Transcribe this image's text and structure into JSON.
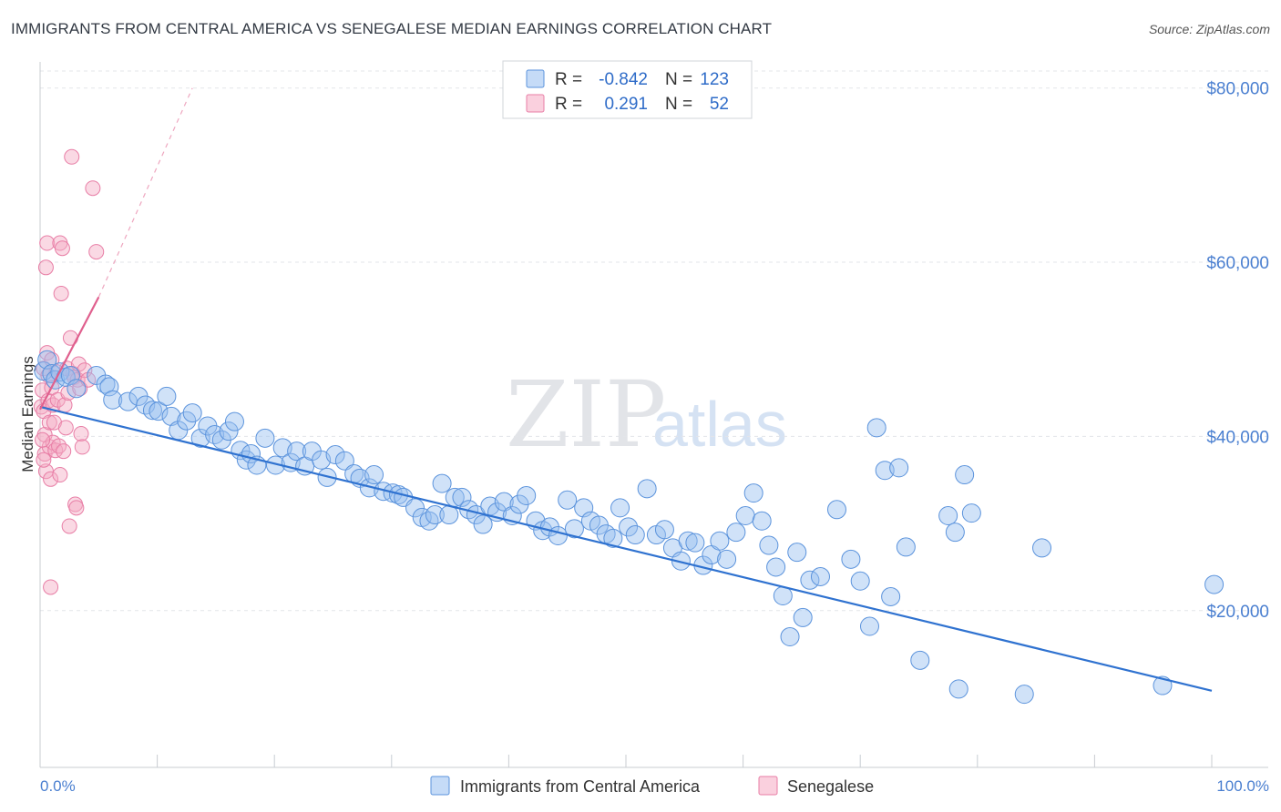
{
  "title": "IMMIGRANTS FROM CENTRAL AMERICA VS SENEGALESE MEDIAN EARNINGS CORRELATION CHART",
  "source": "Source: ZipAtlas.com",
  "watermark": {
    "zip": "ZIP",
    "atlas": "atlas"
  },
  "legend_top": {
    "r_label": "R =",
    "n_label": "N =",
    "rows": [
      {
        "r": "-0.842",
        "n": "123",
        "color": "#a8c8f0"
      },
      {
        "r": "0.291",
        "n": "52",
        "color": "#f5b8cc"
      }
    ]
  },
  "bottom_legend": [
    "Immigrants from Central America",
    "Senegalese"
  ],
  "colors": {
    "blue": "#5b93dc",
    "blue_fill": "rgba(150,190,240,0.45)",
    "pink": "#e87ea6",
    "pink_fill": "rgba(245,170,195,0.45)",
    "line_blue": "#2f72d0",
    "line_pink": "#e0608e"
  },
  "chart_data": {
    "type": "scatter",
    "title": "IMMIGRANTS FROM CENTRAL AMERICA VS SENEGALESE MEDIAN EARNINGS CORRELATION CHART",
    "xlabel": "",
    "ylabel": "Median Earnings",
    "xlim": [
      0,
      100
    ],
    "ylim": [
      2000,
      83000
    ],
    "x_tick_labels": [
      "0.0%",
      "100.0%"
    ],
    "y_ticks": [
      20000,
      40000,
      60000,
      80000
    ],
    "y_tick_labels": [
      "$20,000",
      "$40,000",
      "$60,000",
      "$80,000"
    ],
    "grid": true,
    "series": [
      {
        "name": "Immigrants from Central America",
        "r": -0.842,
        "n": 123,
        "trend": {
          "x": [
            0,
            100
          ],
          "y": [
            43400,
            10800
          ]
        },
        "points": [
          [
            0.3,
            47500
          ],
          [
            0.6,
            48800
          ],
          [
            1.0,
            47200
          ],
          [
            1.3,
            46500
          ],
          [
            1.7,
            47400
          ],
          [
            2.2,
            46800
          ],
          [
            2.6,
            47000
          ],
          [
            3.1,
            45500
          ],
          [
            4.8,
            47000
          ],
          [
            5.6,
            46000
          ],
          [
            5.9,
            45700
          ],
          [
            6.2,
            44200
          ],
          [
            7.5,
            44000
          ],
          [
            8.4,
            44600
          ],
          [
            9.0,
            43600
          ],
          [
            9.6,
            43000
          ],
          [
            10.1,
            42900
          ],
          [
            10.8,
            44600
          ],
          [
            11.2,
            42300
          ],
          [
            11.8,
            40700
          ],
          [
            12.5,
            41800
          ],
          [
            13.0,
            42700
          ],
          [
            13.7,
            39800
          ],
          [
            14.3,
            41200
          ],
          [
            14.9,
            40200
          ],
          [
            15.5,
            39600
          ],
          [
            16.1,
            40600
          ],
          [
            16.6,
            41700
          ],
          [
            17.1,
            38400
          ],
          [
            17.6,
            37300
          ],
          [
            18.0,
            38000
          ],
          [
            18.5,
            36700
          ],
          [
            19.2,
            39800
          ],
          [
            20.1,
            36700
          ],
          [
            20.7,
            38700
          ],
          [
            21.4,
            37000
          ],
          [
            21.9,
            38300
          ],
          [
            22.6,
            36600
          ],
          [
            23.2,
            38300
          ],
          [
            24.0,
            37300
          ],
          [
            24.5,
            35300
          ],
          [
            25.2,
            37900
          ],
          [
            26.0,
            37200
          ],
          [
            26.8,
            35700
          ],
          [
            27.3,
            35200
          ],
          [
            28.1,
            34100
          ],
          [
            28.5,
            35600
          ],
          [
            29.3,
            33700
          ],
          [
            30.1,
            33500
          ],
          [
            30.6,
            33300
          ],
          [
            31.0,
            33000
          ],
          [
            32.0,
            31800
          ],
          [
            32.6,
            30700
          ],
          [
            33.2,
            30300
          ],
          [
            33.7,
            31000
          ],
          [
            34.3,
            34600
          ],
          [
            34.9,
            31000
          ],
          [
            35.4,
            33000
          ],
          [
            36.0,
            33000
          ],
          [
            36.6,
            31600
          ],
          [
            37.2,
            31000
          ],
          [
            37.8,
            29900
          ],
          [
            38.4,
            32000
          ],
          [
            39.0,
            31300
          ],
          [
            39.6,
            32500
          ],
          [
            40.3,
            30900
          ],
          [
            40.9,
            32200
          ],
          [
            41.5,
            33200
          ],
          [
            42.3,
            30300
          ],
          [
            42.9,
            29200
          ],
          [
            43.5,
            29600
          ],
          [
            44.2,
            28600
          ],
          [
            45.0,
            32700
          ],
          [
            45.6,
            29400
          ],
          [
            46.4,
            31800
          ],
          [
            47.0,
            30300
          ],
          [
            47.7,
            29800
          ],
          [
            48.3,
            28800
          ],
          [
            48.9,
            28300
          ],
          [
            49.5,
            31800
          ],
          [
            50.2,
            29600
          ],
          [
            50.8,
            28700
          ],
          [
            51.8,
            34000
          ],
          [
            52.6,
            28700
          ],
          [
            53.3,
            29300
          ],
          [
            54.0,
            27200
          ],
          [
            54.7,
            25700
          ],
          [
            55.3,
            28000
          ],
          [
            55.9,
            27800
          ],
          [
            56.6,
            25200
          ],
          [
            57.3,
            26400
          ],
          [
            58.0,
            28000
          ],
          [
            58.6,
            25900
          ],
          [
            59.4,
            29000
          ],
          [
            60.2,
            30900
          ],
          [
            60.9,
            33500
          ],
          [
            61.6,
            30300
          ],
          [
            62.2,
            27500
          ],
          [
            62.8,
            25000
          ],
          [
            63.4,
            21700
          ],
          [
            64.0,
            17000
          ],
          [
            64.6,
            26700
          ],
          [
            65.1,
            19200
          ],
          [
            65.7,
            23500
          ],
          [
            66.6,
            23900
          ],
          [
            68.0,
            31600
          ],
          [
            69.2,
            25900
          ],
          [
            70.0,
            23400
          ],
          [
            70.8,
            18200
          ],
          [
            71.4,
            41000
          ],
          [
            72.1,
            36100
          ],
          [
            72.6,
            21600
          ],
          [
            73.3,
            36400
          ],
          [
            73.9,
            27300
          ],
          [
            75.1,
            14300
          ],
          [
            77.5,
            30900
          ],
          [
            78.1,
            29000
          ],
          [
            78.4,
            11000
          ],
          [
            78.9,
            35600
          ],
          [
            79.5,
            31200
          ],
          [
            84.0,
            10400
          ],
          [
            85.5,
            27200
          ],
          [
            95.8,
            11400
          ],
          [
            100.2,
            23000
          ]
        ]
      },
      {
        "name": "Senegalese",
        "r": 0.291,
        "n": 52,
        "trend": {
          "x": [
            0,
            5
          ],
          "y": [
            43100,
            56000
          ],
          "ext_x": [
            5,
            13
          ],
          "ext_y": [
            56000,
            80000
          ]
        },
        "points": [
          [
            0.1,
            43400
          ],
          [
            0.2,
            45300
          ],
          [
            0.3,
            47800
          ],
          [
            0.3,
            42900
          ],
          [
            0.4,
            40200
          ],
          [
            0.4,
            38000
          ],
          [
            0.5,
            36000
          ],
          [
            0.5,
            59400
          ],
          [
            0.6,
            62200
          ],
          [
            0.6,
            49600
          ],
          [
            0.7,
            47000
          ],
          [
            0.7,
            44100
          ],
          [
            0.8,
            41600
          ],
          [
            0.8,
            38800
          ],
          [
            0.9,
            35100
          ],
          [
            0.9,
            22700
          ],
          [
            1.0,
            48800
          ],
          [
            1.0,
            45600
          ],
          [
            1.1,
            43600
          ],
          [
            1.1,
            39300
          ],
          [
            1.2,
            41600
          ],
          [
            1.3,
            38400
          ],
          [
            1.4,
            47400
          ],
          [
            1.5,
            44200
          ],
          [
            1.6,
            38900
          ],
          [
            1.7,
            35600
          ],
          [
            1.7,
            62200
          ],
          [
            1.8,
            56400
          ],
          [
            1.9,
            61600
          ],
          [
            2.0,
            38300
          ],
          [
            2.1,
            43600
          ],
          [
            2.2,
            41000
          ],
          [
            2.3,
            47800
          ],
          [
            2.4,
            45000
          ],
          [
            2.5,
            29700
          ],
          [
            2.6,
            51300
          ],
          [
            2.7,
            72100
          ],
          [
            2.8,
            47200
          ],
          [
            2.9,
            46800
          ],
          [
            3.0,
            32200
          ],
          [
            3.1,
            31800
          ],
          [
            3.2,
            46500
          ],
          [
            3.3,
            48300
          ],
          [
            3.4,
            45500
          ],
          [
            3.5,
            40300
          ],
          [
            3.6,
            38800
          ],
          [
            3.8,
            47600
          ],
          [
            4.1,
            46500
          ],
          [
            4.5,
            68500
          ],
          [
            4.8,
            61200
          ],
          [
            0.2,
            39600
          ],
          [
            0.3,
            37300
          ]
        ]
      }
    ]
  }
}
